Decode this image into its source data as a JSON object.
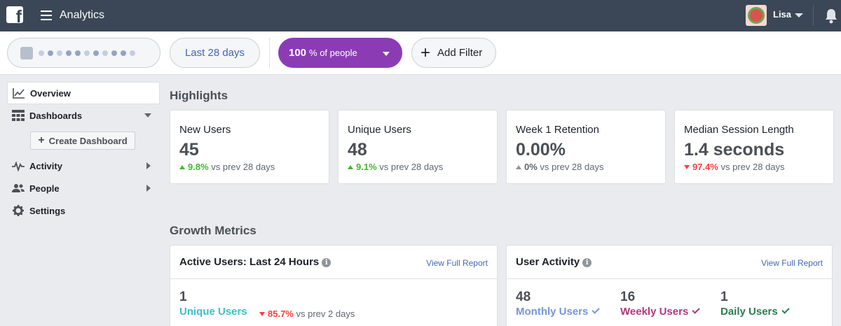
{
  "topbar": {
    "title": "Analytics",
    "user_name": "Lisa",
    "logo_icon": "facebook-logo-icon",
    "menu_icon": "hamburger-icon",
    "notifications_icon": "bell-icon"
  },
  "filters": {
    "date_range": "Last 28 days",
    "people_percent": "100",
    "people_suffix": "% of people",
    "add_filter": "Add Filter"
  },
  "sidebar": {
    "items": [
      {
        "label": "Overview",
        "icon": "line-chart-icon",
        "active": true
      },
      {
        "label": "Dashboards",
        "icon": "dashboard-grid-icon"
      },
      {
        "label": "Activity",
        "icon": "activity-pulse-icon"
      },
      {
        "label": "People",
        "icon": "people-icon"
      },
      {
        "label": "Settings",
        "icon": "gear-icon"
      }
    ],
    "create_dashboard": "Create Dashboard"
  },
  "highlights": {
    "title": "Highlights",
    "cards": [
      {
        "label": "New Users",
        "value": "45",
        "delta": "9.8%",
        "direction": "up",
        "compare": "vs prev 28 days"
      },
      {
        "label": "Unique Users",
        "value": "48",
        "delta": "9.1%",
        "direction": "up",
        "compare": "vs prev 28 days"
      },
      {
        "label": "Week 1 Retention",
        "value": "0.00%",
        "delta": "0%",
        "direction": "flat",
        "compare": "vs prev 28 days"
      },
      {
        "label": "Median Session Length",
        "value": "1.4 seconds",
        "delta": "97.4%",
        "direction": "down",
        "compare": "vs prev 28 days"
      }
    ]
  },
  "growth": {
    "title": "Growth Metrics",
    "active_users": {
      "title": "Active Users: Last 24 Hours",
      "link": "View Full Report",
      "value": "1",
      "label": "Unique Users",
      "delta": "85.7%",
      "compare": "vs prev 2 days"
    },
    "user_activity": {
      "title": "User Activity",
      "link": "View Full Report",
      "metrics": [
        {
          "value": "48",
          "label": "Monthly Users",
          "color": "#7596d9"
        },
        {
          "value": "16",
          "label": "Weekly Users",
          "color": "#b0377f"
        },
        {
          "value": "1",
          "label": "Daily Users",
          "color": "#2a7d4f"
        }
      ]
    }
  },
  "colors": {
    "topbar": "#3b4756",
    "accent_purple": "#8b3cb4",
    "link": "#4267b2",
    "positive": "#42b72a",
    "negative": "#fa3e3e",
    "unique_users": "#3dbfc7"
  }
}
